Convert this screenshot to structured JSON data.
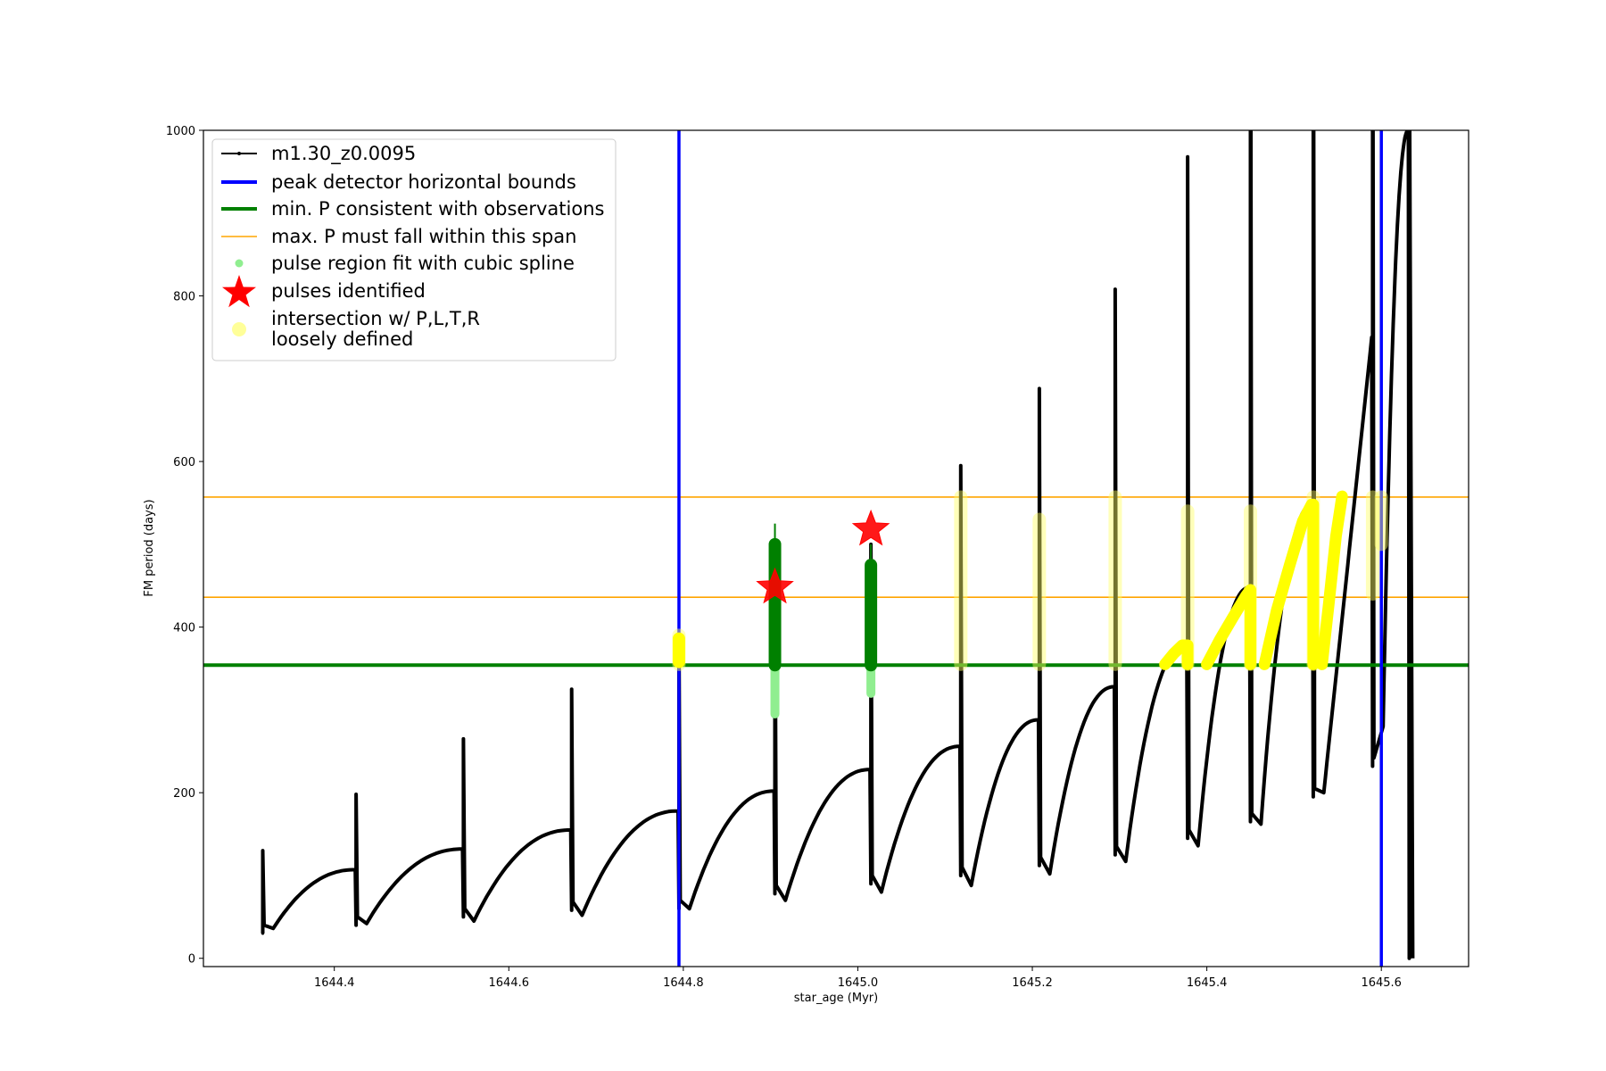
{
  "chart_data": {
    "type": "line",
    "xlabel": "star_age (Myr)",
    "ylabel": "FM period (days)",
    "xlim": [
      1644.25,
      1645.7
    ],
    "ylim": [
      -10,
      1000
    ],
    "x_ticks": [
      1644.4,
      1644.6,
      1644.8,
      1645.0,
      1645.2,
      1645.4,
      1645.6
    ],
    "x_tick_labels": [
      "1644.4",
      "1644.6",
      "1644.8",
      "1645.0",
      "1645.2",
      "1645.4",
      "1645.6"
    ],
    "y_ticks": [
      0,
      200,
      400,
      600,
      800,
      1000
    ],
    "y_tick_labels": [
      "0",
      "200",
      "400",
      "600",
      "800",
      "1000"
    ],
    "grid": false,
    "legend_position": "upper-left",
    "colors": {
      "track": "#000000",
      "bounds": "#0000ff",
      "min_p": "#008000",
      "max_p": "#ffa500",
      "pulse_fit": "#90ee90",
      "pulse_fit_dark": "#008000",
      "pulses": "#ff0000",
      "intersection": "#ffff00"
    },
    "legend": [
      {
        "label": "m1.30_z0.0095",
        "kind": "line-marker",
        "color": "#000000"
      },
      {
        "label": "peak detector horizontal bounds",
        "kind": "line",
        "color": "#0000ff"
      },
      {
        "label": "min. P consistent with observations",
        "kind": "line",
        "color": "#008000"
      },
      {
        "label": "max. P must fall within this span",
        "kind": "thin-line",
        "color": "#ffa500"
      },
      {
        "label": "pulse region fit with cubic spline",
        "kind": "dot",
        "color": "#90ee90"
      },
      {
        "label": "pulses identified",
        "kind": "star",
        "color": "#ff0000"
      },
      {
        "label": "intersection w/ P,L,T,R",
        "label_line2": "loosely defined",
        "kind": "blob",
        "color": "#ffff99"
      }
    ],
    "vertical_bounds_x": [
      1644.795,
      1645.6
    ],
    "min_p_y": 354,
    "max_p_span_y": [
      436,
      557
    ],
    "pulses_identified": [
      {
        "x": 1644.905,
        "y": 448
      },
      {
        "x": 1645.015,
        "y": 518
      }
    ],
    "pulse_fit_regions": [
      {
        "x": 1644.905,
        "y_low": 295,
        "y_high": 525
      },
      {
        "x": 1645.015,
        "y_low": 320,
        "y_high": 500
      }
    ],
    "track_spikes": [
      {
        "x": 1644.318,
        "min": 30,
        "max": 130,
        "recover": 36,
        "next_max": 107
      },
      {
        "x": 1644.425,
        "min": 40,
        "max": 198,
        "recover": 42,
        "next_max": 132
      },
      {
        "x": 1644.548,
        "min": 50,
        "max": 265,
        "recover": 45,
        "next_max": 155
      },
      {
        "x": 1644.672,
        "min": 58,
        "max": 325,
        "recover": 52,
        "next_max": 178
      },
      {
        "x": 1644.795,
        "min": 60,
        "max": 385,
        "recover": 60,
        "next_max": 202
      },
      {
        "x": 1644.905,
        "min": 78,
        "max": 495,
        "recover": 70,
        "next_max": 228
      },
      {
        "x": 1645.015,
        "min": 90,
        "max": 500,
        "recover": 80,
        "next_max": 256
      },
      {
        "x": 1645.118,
        "min": 100,
        "max": 595,
        "recover": 88,
        "next_max": 288
      },
      {
        "x": 1645.208,
        "min": 112,
        "max": 688,
        "recover": 102,
        "next_max": 328
      },
      {
        "x": 1645.295,
        "min": 125,
        "max": 808,
        "recover": 117,
        "next_max": 380
      },
      {
        "x": 1645.378,
        "min": 145,
        "max": 968,
        "recover": 136,
        "next_max": 448
      },
      {
        "x": 1645.45,
        "min": 165,
        "max": 1000,
        "recover": 162,
        "next_max": 548
      },
      {
        "x": 1645.522,
        "min": 195,
        "max": 1000,
        "recover": 200,
        "next_max": 750
      },
      {
        "x": 1645.59,
        "min": 232,
        "max": 1000,
        "recover": 280,
        "next_max": 1000
      },
      {
        "x": 1645.632,
        "min": 0,
        "max": 1000,
        "recover": 0,
        "next_max": 0
      }
    ],
    "intersection_bands": [
      {
        "x": 1644.795,
        "y_low": 355,
        "y_high": 390
      },
      {
        "x": 1645.118,
        "y_low": 355,
        "y_high": 557
      },
      {
        "x": 1645.208,
        "y_low": 355,
        "y_high": 530
      },
      {
        "x": 1645.295,
        "y_low": 355,
        "y_high": 557
      },
      {
        "x": 1645.378,
        "y_low": 355,
        "y_high": 540
      },
      {
        "x": 1645.45,
        "y_low": 355,
        "y_high": 540
      },
      {
        "x": 1645.522,
        "y_low": 355,
        "y_high": 557
      },
      {
        "x": 1645.59,
        "y_low": 440,
        "y_high": 557
      },
      {
        "x": 1645.6,
        "y_low": 500,
        "y_high": 557
      }
    ],
    "intersection_curves": [
      [
        [
          1645.352,
          355
        ],
        [
          1645.362,
          368
        ],
        [
          1645.372,
          378
        ],
        [
          1645.378,
          378
        ],
        [
          1645.378,
          355
        ]
      ],
      [
        [
          1645.4,
          355
        ],
        [
          1645.415,
          385
        ],
        [
          1645.43,
          412
        ],
        [
          1645.445,
          438
        ],
        [
          1645.45,
          445
        ],
        [
          1645.45,
          355
        ]
      ],
      [
        [
          1645.466,
          355
        ],
        [
          1645.48,
          420
        ],
        [
          1645.495,
          475
        ],
        [
          1645.51,
          528
        ],
        [
          1645.52,
          548
        ],
        [
          1645.522,
          548
        ],
        [
          1645.522,
          355
        ]
      ],
      [
        [
          1645.532,
          355
        ],
        [
          1645.54,
          430
        ],
        [
          1645.548,
          510
        ],
        [
          1645.555,
          558
        ]
      ]
    ]
  }
}
